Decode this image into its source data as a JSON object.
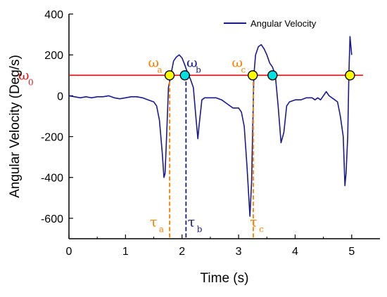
{
  "chart_data": {
    "type": "line",
    "title": "",
    "xlabel": "Time (s)",
    "ylabel": "Angular Velocity (Deg/s)",
    "xlim": [
      0,
      5.5
    ],
    "ylim": [
      -700,
      400
    ],
    "xticks": [
      0,
      1,
      2,
      3,
      4,
      5
    ],
    "yticks": [
      -600,
      -400,
      -200,
      0,
      200,
      400
    ],
    "xtick_labels": [
      "0",
      "1",
      "2",
      "3",
      "4",
      "5"
    ],
    "ytick_labels": [
      "-600",
      "-400",
      "-200",
      "0",
      "200",
      "400"
    ],
    "grid": false,
    "legend": {
      "position": "top-right",
      "entries": [
        "Angular Velocity"
      ]
    },
    "colors": {
      "series": "#1a1a8c",
      "threshold": "#dd1c1c",
      "orange": "#ff8000",
      "navy": "#1a1a8c",
      "yellow_marker": "#ffff00",
      "cyan_marker": "#00e0e0"
    },
    "series": [
      {
        "name": "Angular Velocity",
        "x": [
          0.0,
          0.1,
          0.2,
          0.3,
          0.4,
          0.5,
          0.6,
          0.7,
          0.8,
          0.9,
          1.0,
          1.1,
          1.2,
          1.3,
          1.4,
          1.5,
          1.55,
          1.6,
          1.65,
          1.68,
          1.7,
          1.73,
          1.76,
          1.8,
          1.85,
          1.9,
          1.95,
          2.0,
          2.05,
          2.1,
          2.15,
          2.2,
          2.25,
          2.28,
          2.3,
          2.35,
          2.4,
          2.5,
          2.6,
          2.7,
          2.8,
          2.9,
          3.0,
          3.05,
          3.1,
          3.15,
          3.2,
          3.23,
          3.25,
          3.27,
          3.3,
          3.35,
          3.4,
          3.45,
          3.5,
          3.55,
          3.6,
          3.65,
          3.7,
          3.75,
          3.8,
          3.85,
          3.9,
          4.0,
          4.1,
          4.2,
          4.3,
          4.35,
          4.4,
          4.45,
          4.5,
          4.55,
          4.6,
          4.7,
          4.75,
          4.8,
          4.85,
          4.88,
          4.9,
          4.93,
          4.95,
          4.97,
          5.0
        ],
        "y": [
          0,
          -5,
          -10,
          -5,
          -10,
          -5,
          -5,
          0,
          -10,
          -15,
          -10,
          -5,
          -5,
          -10,
          -20,
          -30,
          -50,
          -120,
          -280,
          -400,
          -380,
          -180,
          40,
          100,
          170,
          190,
          200,
          185,
          150,
          110,
          80,
          40,
          -120,
          -210,
          -150,
          -20,
          -10,
          -10,
          -10,
          -20,
          -40,
          -60,
          -60,
          -80,
          -150,
          -350,
          -590,
          -420,
          -150,
          100,
          200,
          240,
          250,
          230,
          200,
          160,
          140,
          100,
          -50,
          -230,
          -180,
          -50,
          -30,
          -20,
          -20,
          -10,
          -10,
          -20,
          -10,
          -20,
          0,
          20,
          0,
          -20,
          -30,
          -100,
          -200,
          -440,
          -380,
          -200,
          100,
          290,
          200
        ]
      }
    ],
    "threshold": {
      "label": "ω",
      "sub": "0",
      "y": 100
    },
    "markers": [
      {
        "x": 1.78,
        "y": 100,
        "color": "yellow"
      },
      {
        "x": 2.05,
        "y": 100,
        "color": "cyan"
      },
      {
        "x": 3.25,
        "y": 100,
        "color": "yellow"
      },
      {
        "x": 3.6,
        "y": 100,
        "color": "cyan"
      },
      {
        "x": 4.97,
        "y": 100,
        "color": "yellow"
      }
    ],
    "vlines": [
      {
        "x": 1.78,
        "color": "orange"
      },
      {
        "x": 2.07,
        "color": "navy"
      },
      {
        "x": 3.26,
        "color": "orange"
      }
    ],
    "annotations": [
      {
        "main": "ω",
        "sub": "a",
        "color": "orange",
        "x": 1.4,
        "y": 140
      },
      {
        "main": "ω",
        "sub": "b",
        "color": "navy",
        "x": 2.08,
        "y": 140
      },
      {
        "main": "ω",
        "sub": "c",
        "color": "orange",
        "x": 2.88,
        "y": 140
      },
      {
        "main": "τ",
        "sub": "a",
        "color": "orange",
        "x": 1.43,
        "y": -640
      },
      {
        "main": "τ",
        "sub": "b",
        "color": "navy",
        "x": 2.1,
        "y": -640
      },
      {
        "main": "τ",
        "sub": "c",
        "color": "orange",
        "x": 3.2,
        "y": -640
      }
    ]
  }
}
